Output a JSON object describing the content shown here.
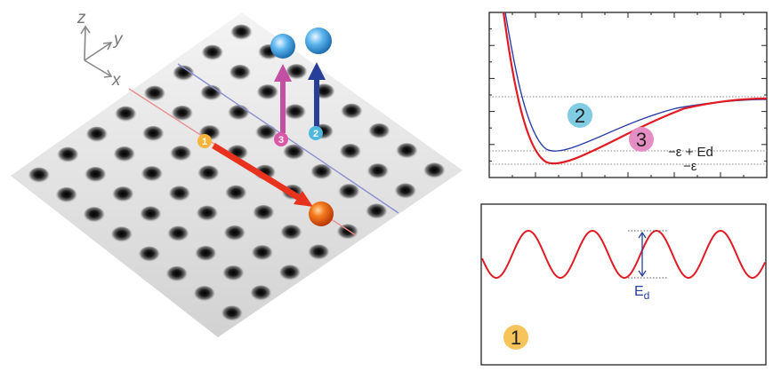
{
  "axes_3d": {
    "z": "z",
    "y": "y",
    "x": "x"
  },
  "markers": [
    {
      "label": "1",
      "color": "#f6b43a"
    },
    {
      "label": "2",
      "color": "#4db8dc"
    },
    {
      "label": "3",
      "color": "#d957a7"
    }
  ],
  "arrow_colors": {
    "red": "#e8321e",
    "magenta": "#c34fa2",
    "blue": "#283f9a"
  },
  "ball_colors": {
    "orange": "#ef6a18",
    "light_blue": "#49a7e6"
  },
  "top_plot": {
    "curve_2_color": "#2b3ea7",
    "curve_3_color": "#e01b24",
    "label_2": "2",
    "label_3": "3",
    "level_label_1": "−ε + Ed",
    "level_label_2": "−ε"
  },
  "bottom_plot": {
    "curve_color": "#e01b24",
    "barrier_label": "E",
    "barrier_sub": "d",
    "marker_label": "1"
  }
}
